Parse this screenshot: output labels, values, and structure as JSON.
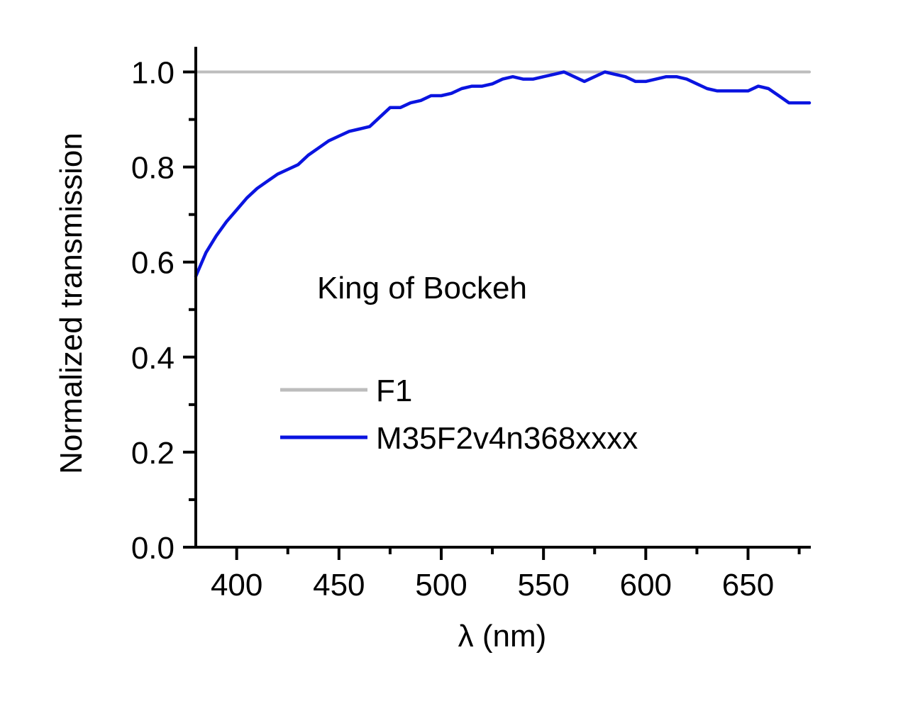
{
  "chart_data": {
    "type": "line",
    "title": "",
    "xlabel": "λ (nm)",
    "ylabel": "Normalized transmission",
    "xlim": [
      380,
      680
    ],
    "ylim": [
      0.0,
      1.05
    ],
    "x_ticks": [
      400,
      450,
      500,
      550,
      600,
      650
    ],
    "x_tick_labels": [
      "400",
      "450",
      "500",
      "550",
      "600",
      "650"
    ],
    "x_minor_ticks": [
      425,
      475,
      525,
      575,
      625,
      675
    ],
    "y_ticks": [
      0.0,
      0.2,
      0.4,
      0.6,
      0.8,
      1.0
    ],
    "y_tick_labels": [
      "0.0",
      "0.2",
      "0.4",
      "0.6",
      "0.8",
      "1.0"
    ],
    "y_minor_ticks": [
      0.1,
      0.3,
      0.5,
      0.7,
      0.9
    ],
    "grid": false,
    "legend_position": "center",
    "annotations": [
      {
        "text": "King of Bockeh",
        "x": 440,
        "y": 0.545
      }
    ],
    "series": [
      {
        "name": "F1",
        "color": "#bdbdbd",
        "x": [
          380,
          680
        ],
        "y": [
          1.0,
          1.0
        ]
      },
      {
        "name": "M35F2v4n368xxxx",
        "color": "#0a14e0",
        "x": [
          380,
          385,
          390,
          395,
          400,
          405,
          410,
          415,
          420,
          425,
          430,
          435,
          440,
          445,
          450,
          455,
          460,
          465,
          470,
          475,
          480,
          485,
          490,
          495,
          500,
          505,
          510,
          515,
          520,
          525,
          530,
          535,
          540,
          545,
          550,
          555,
          560,
          565,
          570,
          575,
          580,
          585,
          590,
          595,
          600,
          605,
          610,
          615,
          620,
          625,
          630,
          635,
          640,
          645,
          650,
          655,
          660,
          665,
          670,
          675,
          680
        ],
        "y": [
          0.57,
          0.62,
          0.655,
          0.685,
          0.71,
          0.735,
          0.755,
          0.77,
          0.785,
          0.795,
          0.805,
          0.825,
          0.84,
          0.855,
          0.865,
          0.875,
          0.88,
          0.885,
          0.905,
          0.925,
          0.925,
          0.935,
          0.94,
          0.95,
          0.95,
          0.955,
          0.965,
          0.97,
          0.97,
          0.975,
          0.985,
          0.99,
          0.985,
          0.985,
          0.99,
          0.995,
          1.0,
          0.99,
          0.98,
          0.99,
          1.0,
          0.995,
          0.99,
          0.98,
          0.98,
          0.985,
          0.99,
          0.99,
          0.985,
          0.975,
          0.965,
          0.96,
          0.96,
          0.96,
          0.96,
          0.97,
          0.965,
          0.95,
          0.935,
          0.935,
          0.935
        ]
      }
    ]
  }
}
